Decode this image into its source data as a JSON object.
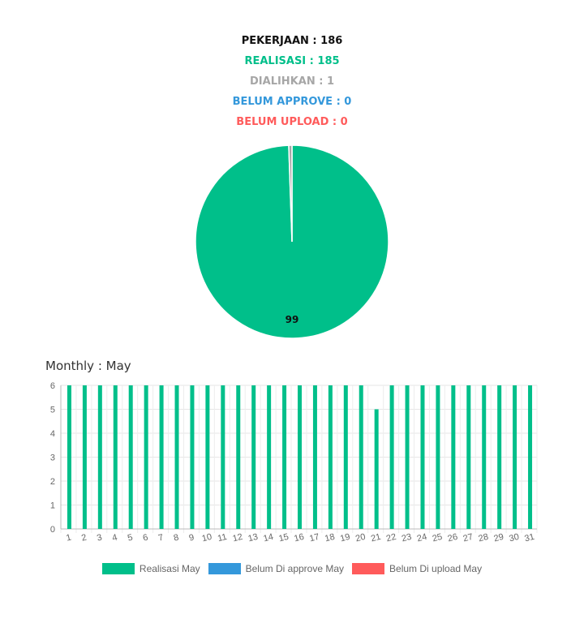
{
  "summary": {
    "pekerjaan": "PEKERJAAN : 186",
    "realisasi": "REALISASI : 185",
    "dialihkan": "DIALIHKAN : 1",
    "belum_approve": "BELUM APPROVE : 0",
    "belum_upload": "BELUM UPLOAD : 0"
  },
  "colors": {
    "realisasi": "#00bf8a",
    "dialihkan": "#a6a6a6",
    "approve": "#3498db",
    "upload": "#ff5b5b",
    "text_dark": "#111111"
  },
  "monthly_title": "Monthly : May",
  "chart_data": [
    {
      "type": "pie",
      "slices": [
        {
          "value": 185,
          "color": "#00bf8a"
        },
        {
          "value": 1,
          "color": "#a6a6a6"
        }
      ],
      "data_label": "99"
    },
    {
      "type": "bar",
      "categories": [
        "1",
        "2",
        "3",
        "4",
        "5",
        "6",
        "7",
        "8",
        "9",
        "10",
        "11",
        "12",
        "13",
        "14",
        "15",
        "16",
        "17",
        "18",
        "19",
        "20",
        "21",
        "22",
        "23",
        "24",
        "25",
        "26",
        "27",
        "28",
        "29",
        "30",
        "31"
      ],
      "series": [
        {
          "name": "Realisasi May",
          "color": "#00bf8a",
          "values": [
            6,
            6,
            6,
            6,
            6,
            6,
            6,
            6,
            6,
            6,
            6,
            6,
            6,
            6,
            6,
            6,
            6,
            6,
            6,
            6,
            5,
            6,
            6,
            6,
            6,
            6,
            6,
            6,
            6,
            6,
            6
          ]
        },
        {
          "name": "Belum Di approve May",
          "color": "#3498db",
          "values": [
            0,
            0,
            0,
            0,
            0,
            0,
            0,
            0,
            0,
            0,
            0,
            0,
            0,
            0,
            0,
            0,
            0,
            0,
            0,
            0,
            0,
            0,
            0,
            0,
            0,
            0,
            0,
            0,
            0,
            0,
            0
          ]
        },
        {
          "name": "Belum Di upload May",
          "color": "#ff5b5b",
          "values": [
            0,
            0,
            0,
            0,
            0,
            0,
            0,
            0,
            0,
            0,
            0,
            0,
            0,
            0,
            0,
            0,
            0,
            0,
            0,
            0,
            0,
            0,
            0,
            0,
            0,
            0,
            0,
            0,
            0,
            0,
            0
          ]
        }
      ],
      "yticks": [
        "0",
        "1",
        "2",
        "3",
        "4",
        "5",
        "6"
      ],
      "ylim": [
        0,
        6
      ],
      "grid": true,
      "legend": "bottom"
    }
  ]
}
